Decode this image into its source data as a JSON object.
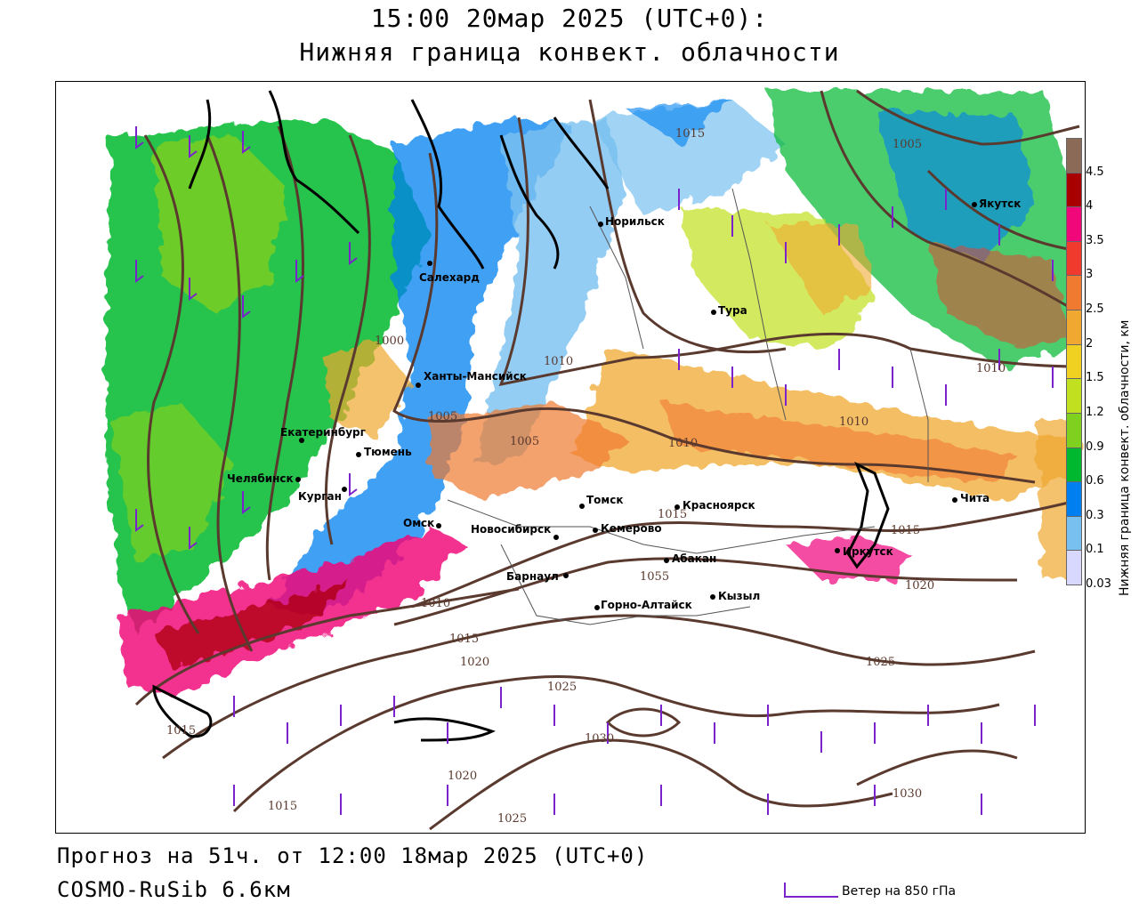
{
  "header": {
    "time_line": "15:00 20мар 2025 (UTC+0):",
    "field_line": "Нижняя граница конвект. облачности"
  },
  "footer": {
    "forecast": "Прогноз на 51ч. от 12:00 18мар 2025 (UTC+0)",
    "model": "COSMO-RuSib 6.6км"
  },
  "wind_legend": {
    "label": "Ветер на 850 гПа",
    "color": "#7a22cc"
  },
  "colorbar": {
    "title": "Нижняя граница конвект. облачности, км",
    "ticks": [
      "4.5",
      "4",
      "3.5",
      "3",
      "2.5",
      "2",
      "1.5",
      "1.2",
      "0.9",
      "0.6",
      "0.3",
      "0.1",
      "0.03"
    ],
    "colors": [
      "#8c6a58",
      "#a80000",
      "#f0087a",
      "#f03a2e",
      "#f07a30",
      "#f0a830",
      "#f0d020",
      "#c0e020",
      "#80d020",
      "#00b830",
      "#0080f0",
      "#78c0f0",
      "#d8d8ff"
    ]
  },
  "cities": [
    {
      "name": "Салехард"
    },
    {
      "name": "Норильск"
    },
    {
      "name": "Якутск"
    },
    {
      "name": "Тура"
    },
    {
      "name": "Ханты-Мансийск"
    },
    {
      "name": "Екатеринбург"
    },
    {
      "name": "Тюмень"
    },
    {
      "name": "Челябинск"
    },
    {
      "name": "Курган"
    },
    {
      "name": "Омск"
    },
    {
      "name": "Томск"
    },
    {
      "name": "Новосибирск"
    },
    {
      "name": "Кемерово"
    },
    {
      "name": "Красноярск"
    },
    {
      "name": "Барнаул"
    },
    {
      "name": "Абакан"
    },
    {
      "name": "Горно-Алтайск"
    },
    {
      "name": "Кызыл"
    },
    {
      "name": "Иркутск"
    },
    {
      "name": "Чита"
    }
  ],
  "isobar_labels": [
    "1015",
    "1005",
    "1000",
    "1010",
    "1005",
    "1005",
    "1010",
    "1010",
    "1010",
    "1015",
    "1015",
    "1015",
    "1020",
    "1055",
    "1010",
    "1015",
    "1020",
    "1025",
    "1030",
    "1025",
    "1030",
    "1020",
    "1015",
    "1025",
    "1015",
    "1020"
  ],
  "map_colors": {
    "isobar": "#5a3a2e",
    "coast": "#000000",
    "border": "#555555"
  }
}
